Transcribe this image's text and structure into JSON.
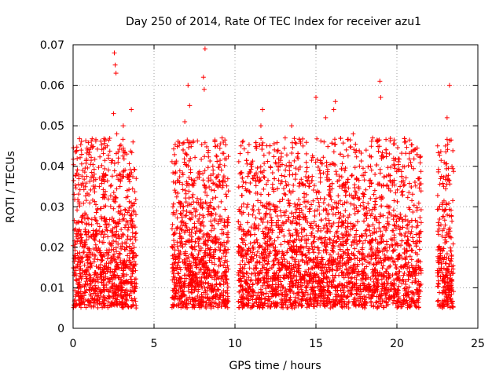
{
  "chart_data": {
    "type": "scatter",
    "title": "Day 250 of 2014, Rate Of TEC Index for receiver azu1",
    "xlabel": "GPS time / hours",
    "ylabel": "ROTI / TECUs",
    "xlim": [
      0,
      25
    ],
    "ylim": [
      0,
      0.07
    ],
    "x_ticks": [
      "0",
      "5",
      "10",
      "15",
      "20",
      "25"
    ],
    "y_ticks": [
      "0",
      "0.01",
      "0.02",
      "0.03",
      "0.04",
      "0.05",
      "0.06",
      "0.07"
    ],
    "x_tick_values": [
      0,
      5,
      10,
      15,
      20,
      25
    ],
    "y_tick_values": [
      0,
      0.01,
      0.02,
      0.03,
      0.04,
      0.05,
      0.06,
      0.07
    ],
    "grid": true,
    "marker": "+",
    "series_color": "#ff0000",
    "x_coverage": [
      [
        0.0,
        3.9
      ],
      [
        6.1,
        9.6
      ],
      [
        10.2,
        21.5
      ],
      [
        22.5,
        23.5
      ]
    ],
    "y_core_range": [
      0.005,
      0.035
    ],
    "points": [
      [
        0.1,
        0.018
      ],
      [
        0.3,
        0.024
      ],
      [
        0.5,
        0.044
      ],
      [
        0.6,
        0.039
      ],
      [
        0.8,
        0.028
      ],
      [
        1.0,
        0.012
      ],
      [
        1.3,
        0.022
      ],
      [
        1.6,
        0.015
      ],
      [
        1.9,
        0.03
      ],
      [
        2.2,
        0.008
      ],
      [
        2.5,
        0.053
      ],
      [
        2.55,
        0.068
      ],
      [
        2.6,
        0.065
      ],
      [
        2.65,
        0.063
      ],
      [
        2.7,
        0.048
      ],
      [
        2.9,
        0.035
      ],
      [
        3.1,
        0.05
      ],
      [
        3.3,
        0.02
      ],
      [
        3.6,
        0.054
      ],
      [
        3.7,
        0.046
      ],
      [
        3.8,
        0.011
      ],
      [
        6.2,
        0.015
      ],
      [
        6.6,
        0.031
      ],
      [
        6.9,
        0.051
      ],
      [
        7.0,
        0.043
      ],
      [
        7.1,
        0.06
      ],
      [
        7.2,
        0.055
      ],
      [
        7.5,
        0.025
      ],
      [
        7.9,
        0.031
      ],
      [
        8.05,
        0.062
      ],
      [
        8.1,
        0.059
      ],
      [
        8.15,
        0.069
      ],
      [
        8.5,
        0.018
      ],
      [
        8.9,
        0.045
      ],
      [
        9.2,
        0.047
      ],
      [
        9.5,
        0.012
      ],
      [
        10.3,
        0.02
      ],
      [
        10.7,
        0.034
      ],
      [
        11.0,
        0.012
      ],
      [
        11.3,
        0.038
      ],
      [
        11.6,
        0.05
      ],
      [
        11.7,
        0.054
      ],
      [
        12.0,
        0.016
      ],
      [
        12.5,
        0.041
      ],
      [
        12.8,
        0.029
      ],
      [
        13.1,
        0.047
      ],
      [
        13.5,
        0.05
      ],
      [
        13.8,
        0.022
      ],
      [
        14.2,
        0.045
      ],
      [
        14.6,
        0.035
      ],
      [
        15.0,
        0.057
      ],
      [
        15.3,
        0.041
      ],
      [
        15.6,
        0.052
      ],
      [
        15.8,
        0.015
      ],
      [
        16.1,
        0.054
      ],
      [
        16.2,
        0.056
      ],
      [
        16.5,
        0.043
      ],
      [
        16.9,
        0.024
      ],
      [
        17.3,
        0.048
      ],
      [
        17.7,
        0.032
      ],
      [
        18.1,
        0.044
      ],
      [
        18.5,
        0.047
      ],
      [
        18.95,
        0.061
      ],
      [
        19.0,
        0.057
      ],
      [
        19.4,
        0.03
      ],
      [
        19.8,
        0.042
      ],
      [
        20.2,
        0.035
      ],
      [
        20.6,
        0.021
      ],
      [
        20.9,
        0.04
      ],
      [
        21.2,
        0.025
      ],
      [
        21.4,
        0.037
      ],
      [
        22.6,
        0.02
      ],
      [
        22.8,
        0.031
      ],
      [
        23.0,
        0.045
      ],
      [
        23.1,
        0.052
      ],
      [
        23.25,
        0.06
      ],
      [
        23.4,
        0.01
      ]
    ]
  }
}
